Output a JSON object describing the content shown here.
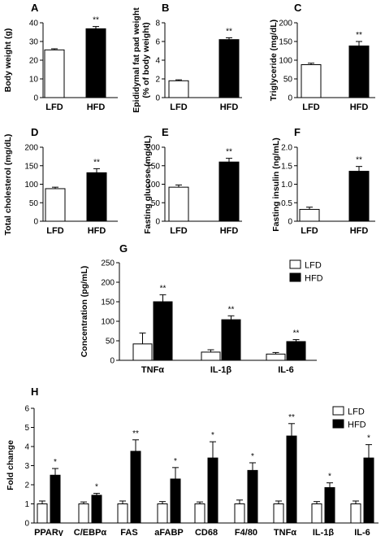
{
  "colors": {
    "lfd_fill": "#ffffff",
    "hfd_fill": "#000000",
    "axis": "#000000"
  },
  "chart_data": [
    {
      "panel": "A",
      "type": "bar",
      "categories": [
        "LFD",
        "HFD"
      ],
      "values": [
        25.5,
        36.8
      ],
      "errors": [
        0.6,
        1.2
      ],
      "significance": [
        "",
        "**"
      ],
      "ylabel": "Body weight (g)",
      "ylim": [
        0,
        40
      ],
      "yticks": [
        0,
        10,
        20,
        30,
        40
      ],
      "grid": false
    },
    {
      "panel": "B",
      "type": "bar",
      "categories": [
        "LFD",
        "HFD"
      ],
      "values": [
        1.8,
        6.2
      ],
      "errors": [
        0.1,
        0.2
      ],
      "significance": [
        "",
        "**"
      ],
      "ylabel": "Epididymal fat pad weight (% of body weight)",
      "ylim": [
        0,
        8
      ],
      "yticks": [
        0,
        2,
        4,
        6,
        8
      ],
      "grid": false
    },
    {
      "panel": "C",
      "type": "bar",
      "categories": [
        "LFD",
        "HFD"
      ],
      "values": [
        88,
        138
      ],
      "errors": [
        4,
        12
      ],
      "significance": [
        "",
        "**"
      ],
      "ylabel": "Triglyceride (mg/dL)",
      "ylim": [
        0,
        200
      ],
      "yticks": [
        0,
        50,
        100,
        150,
        200
      ],
      "grid": false
    },
    {
      "panel": "D",
      "type": "bar",
      "categories": [
        "LFD",
        "HFD"
      ],
      "values": [
        88,
        131
      ],
      "errors": [
        4,
        11
      ],
      "significance": [
        "",
        "**"
      ],
      "ylabel": "Total cholesterol (mg/dL)",
      "ylim": [
        0,
        200
      ],
      "yticks": [
        0,
        50,
        100,
        150,
        200
      ],
      "grid": false
    },
    {
      "panel": "E",
      "type": "bar",
      "categories": [
        "LFD",
        "HFD"
      ],
      "values": [
        92,
        160
      ],
      "errors": [
        6,
        10
      ],
      "significance": [
        "",
        "**"
      ],
      "ylabel": "Fasting glucose (mg/dL)",
      "ylim": [
        0,
        200
      ],
      "yticks": [
        0,
        50,
        100,
        150,
        200
      ],
      "grid": false
    },
    {
      "panel": "F",
      "type": "bar",
      "categories": [
        "LFD",
        "HFD"
      ],
      "values": [
        0.32,
        1.35
      ],
      "errors": [
        0.06,
        0.13
      ],
      "significance": [
        "",
        "**"
      ],
      "ylabel": "Fasting insulin (ng/mL)",
      "ylim": [
        0,
        2.0
      ],
      "yticks": [
        0,
        0.5,
        1.0,
        1.5,
        2.0
      ],
      "grid": false
    },
    {
      "panel": "G",
      "type": "bar",
      "categories": [
        "TNFα",
        "IL-1β",
        "IL-6"
      ],
      "series": [
        {
          "name": "LFD",
          "values": [
            42,
            21,
            16
          ],
          "errors": [
            28,
            6,
            4
          ],
          "significance": [
            "",
            "",
            ""
          ]
        },
        {
          "name": "HFD",
          "values": [
            150,
            104,
            48
          ],
          "errors": [
            18,
            10,
            5
          ],
          "significance": [
            "**",
            "**",
            "**"
          ]
        }
      ],
      "ylabel": "Concentration (pg/mL)",
      "ylim": [
        0,
        250
      ],
      "yticks": [
        0,
        50,
        100,
        150,
        200,
        250
      ],
      "legend": "top-right",
      "grid": false
    },
    {
      "panel": "H",
      "type": "bar",
      "categories": [
        "PPARγ",
        "C/EBPα",
        "FAS",
        "aFABP",
        "CD68",
        "F4/80",
        "TNFα",
        "IL-1β",
        "IL-6"
      ],
      "series": [
        {
          "name": "LFD",
          "values": [
            1.0,
            1.0,
            1.0,
            1.0,
            1.0,
            1.0,
            1.0,
            1.0,
            1.0
          ],
          "errors": [
            0.15,
            0.1,
            0.15,
            0.12,
            0.1,
            0.2,
            0.15,
            0.12,
            0.15
          ],
          "significance": [
            "",
            "",
            "",
            "",
            "",
            "",
            "",
            "",
            ""
          ]
        },
        {
          "name": "HFD",
          "values": [
            2.5,
            1.45,
            3.75,
            2.3,
            3.4,
            2.75,
            4.55,
            1.85,
            3.4
          ],
          "errors": [
            0.35,
            0.1,
            0.6,
            0.6,
            0.85,
            0.4,
            0.65,
            0.25,
            0.7
          ],
          "significance": [
            "*",
            "*",
            "**",
            "*",
            "*",
            "*",
            "**",
            "*",
            "*"
          ]
        }
      ],
      "ylabel": "Fold change",
      "ylim": [
        0,
        6
      ],
      "yticks": [
        0,
        1,
        2,
        3,
        4,
        5,
        6
      ],
      "legend": "top-right",
      "grid": false
    }
  ]
}
